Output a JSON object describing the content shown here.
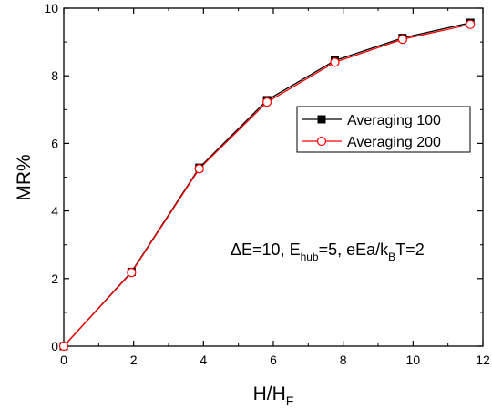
{
  "chart_data": {
    "type": "line",
    "xlabel_main": "H/H",
    "xlabel_sub": "F",
    "ylabel": "MR%",
    "xlim": [
      0,
      12
    ],
    "ylim": [
      0,
      10
    ],
    "xticks": [
      "0",
      "2",
      "4",
      "6",
      "8",
      "10",
      "12"
    ],
    "yticks": [
      "0",
      "2",
      "4",
      "6",
      "8",
      "10"
    ],
    "legend_position": "center-right",
    "series": [
      {
        "name": "Averaging 100",
        "marker": "filled-square",
        "color": "#000000",
        "x": [
          0,
          1.94,
          3.88,
          5.82,
          7.76,
          9.7,
          11.64
        ],
        "y": [
          0,
          2.2,
          5.28,
          7.28,
          8.45,
          9.12,
          9.57
        ]
      },
      {
        "name": "Averaging 200",
        "marker": "open-circle",
        "color": "#ff0000",
        "x": [
          0,
          1.94,
          3.88,
          5.82,
          7.76,
          9.7,
          11.64
        ],
        "y": [
          0,
          2.18,
          5.25,
          7.22,
          8.4,
          9.08,
          9.52
        ]
      }
    ],
    "annotation": {
      "parts": [
        "ΔE=10, E",
        "hub",
        "=5, eEa/k",
        "B",
        "T=2"
      ]
    }
  }
}
